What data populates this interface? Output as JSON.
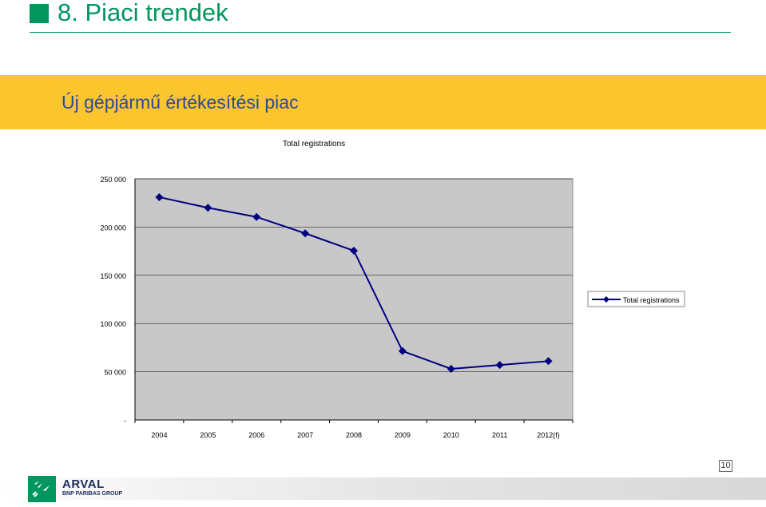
{
  "slide": {
    "title": "8. Piaci trendek",
    "banner": "Új gépjármű értékesítési piac",
    "page_number": "10",
    "logo_name": "ARVAL",
    "logo_sub": "BNP PARIBAS GROUP"
  },
  "colors": {
    "title": "#00965e",
    "banner_bg": "#fbc52e",
    "banner_text": "#2a4a9b",
    "plot_bg": "#c8c8c8",
    "series": "#000080"
  },
  "chart_data": {
    "type": "line",
    "title": "Total registrations",
    "xlabel": "",
    "ylabel": "",
    "categories": [
      "2004",
      "2005",
      "2006",
      "2007",
      "2008",
      "2009",
      "2010",
      "2011",
      "2012(f)"
    ],
    "series": [
      {
        "name": "Total registrations",
        "values": [
          231000,
          220000,
          210500,
          193500,
          175500,
          71500,
          53000,
          57000,
          61000
        ],
        "marker": "diamond"
      }
    ],
    "ylim": [
      0,
      250000
    ],
    "yticks": [
      {
        "value": 250000,
        "label": "250 000"
      },
      {
        "value": 200000,
        "label": "200 000"
      },
      {
        "value": 150000,
        "label": "150 000"
      },
      {
        "value": 100000,
        "label": "100 000"
      },
      {
        "value": 50000,
        "label": "50 000"
      },
      {
        "value": 0,
        "label": "-"
      }
    ],
    "grid": true,
    "legend_position": "right"
  }
}
